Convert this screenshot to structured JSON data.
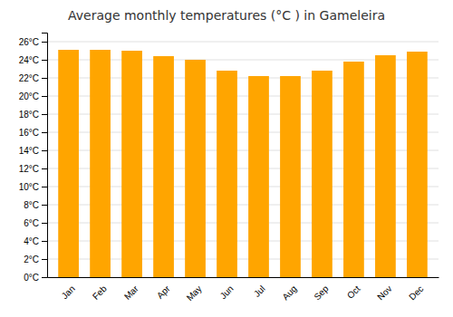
{
  "chart_data": {
    "type": "bar",
    "title": "Average monthly temperatures (°C ) in Gameleira",
    "categories": [
      "Jan",
      "Feb",
      "Mar",
      "Apr",
      "May",
      "Jun",
      "Jul",
      "Aug",
      "Sep",
      "Oct",
      "Nov",
      "Dec"
    ],
    "values": [
      25.1,
      25.1,
      25.0,
      24.4,
      24.0,
      22.8,
      22.2,
      22.2,
      22.8,
      23.8,
      24.5,
      24.9
    ],
    "color": "#FFA500",
    "ylim": [
      0,
      27
    ],
    "yticks": [
      {
        "value": 0,
        "label": "0°C"
      },
      {
        "value": 2,
        "label": "2°C"
      },
      {
        "value": 4,
        "label": "4°C"
      },
      {
        "value": 6,
        "label": "6°C"
      },
      {
        "value": 8,
        "label": "8°C"
      },
      {
        "value": 10,
        "label": "10°C"
      },
      {
        "value": 12,
        "label": "12°C"
      },
      {
        "value": 14,
        "label": "14°C"
      },
      {
        "value": 16,
        "label": "16°C"
      },
      {
        "value": 18,
        "label": "18°C"
      },
      {
        "value": 20,
        "label": "20°C"
      },
      {
        "value": 22,
        "label": "22°C"
      },
      {
        "value": 24,
        "label": "24°C"
      },
      {
        "value": 26,
        "label": "26°C"
      }
    ],
    "grid": true
  }
}
